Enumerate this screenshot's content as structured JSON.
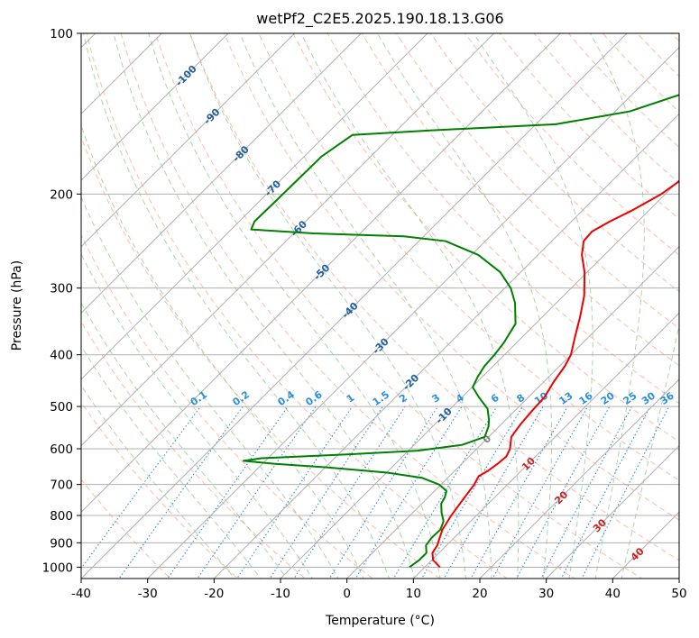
{
  "chart_data": {
    "type": "line",
    "title": "wetPf2_C2E5.2025.190.18.13.G06",
    "xlabel": "Temperature (°C)",
    "ylabel": "Pressure (hPa)",
    "xlim": [
      -40,
      50
    ],
    "ylim": [
      1050,
      100
    ],
    "y_scale": "log",
    "skew": "skew-T log-p",
    "grid": true,
    "x_ticks": [
      -40,
      -30,
      -20,
      -10,
      0,
      10,
      20,
      30,
      40,
      50
    ],
    "y_ticks": [
      1000,
      900,
      800,
      700,
      600,
      500,
      400,
      300,
      200,
      100
    ],
    "isotherm_labels": [
      {
        "value": "-100",
        "t": -100,
        "p": 120
      },
      {
        "value": "-90",
        "t": -90,
        "p": 143
      },
      {
        "value": "-80",
        "t": -80,
        "p": 168
      },
      {
        "value": "-70",
        "t": -70,
        "p": 195
      },
      {
        "value": "-60",
        "t": -60,
        "p": 232
      },
      {
        "value": "-50",
        "t": -50,
        "p": 280
      },
      {
        "value": "-40",
        "t": -40,
        "p": 330
      },
      {
        "value": "-30",
        "t": -30,
        "p": 385
      },
      {
        "value": "-20",
        "t": -20,
        "p": 450
      },
      {
        "value": "-10",
        "t": -10,
        "p": 520
      },
      {
        "value": "0",
        "t": 0,
        "p": 575
      },
      {
        "value": "10",
        "t": 10,
        "p": 640
      },
      {
        "value": "20",
        "t": 20,
        "p": 740
      },
      {
        "value": "30",
        "t": 30,
        "p": 835
      },
      {
        "value": "40",
        "t": 40,
        "p": 945
      }
    ],
    "mixing_ratio_labels": [
      "0.1",
      "0.2",
      "0.4",
      "0.6",
      "1",
      "1.5",
      "2",
      "3",
      "4",
      "6",
      "8",
      "10",
      "13",
      "16",
      "20",
      "25",
      "30",
      "36"
    ],
    "mixing_ratio_values": [
      0.1,
      0.2,
      0.4,
      0.6,
      1,
      1.5,
      2,
      3,
      4,
      6,
      8,
      10,
      13,
      16,
      20,
      25,
      30,
      36
    ],
    "colors": {
      "temperature": "#ee0000",
      "dewpoint": "#008000",
      "isotherm_label": "#1f5fa0",
      "isotherm_label_warm": "#cc2222",
      "isotherm_label_zero": "#808080",
      "mixing_ratio": "#2b8fe0",
      "dry_adiabat": "#ffa080",
      "moist_adiabat": "#80c080",
      "grid": "#b0b0b0"
    },
    "series": [
      {
        "name": "",
        "role": "temperature",
        "points": [
          {
            "p": 1000,
            "t": 12.3
          },
          {
            "p": 970,
            "t": 10.2
          },
          {
            "p": 940,
            "t": 9.0
          },
          {
            "p": 910,
            "t": 8.6
          },
          {
            "p": 880,
            "t": 7.8
          },
          {
            "p": 850,
            "t": 7.0
          },
          {
            "p": 800,
            "t": 6.2
          },
          {
            "p": 750,
            "t": 5.6
          },
          {
            "p": 700,
            "t": 5.0
          },
          {
            "p": 675,
            "t": 4.4
          },
          {
            "p": 660,
            "t": 5.0
          },
          {
            "p": 640,
            "t": 5.4
          },
          {
            "p": 620,
            "t": 5.6
          },
          {
            "p": 600,
            "t": 5.0
          },
          {
            "p": 570,
            "t": 3.4
          },
          {
            "p": 540,
            "t": 2.9
          },
          {
            "p": 510,
            "t": 2.6
          },
          {
            "p": 480,
            "t": 2.4
          },
          {
            "p": 450,
            "t": 1.5
          },
          {
            "p": 420,
            "t": 0.8
          },
          {
            "p": 400,
            "t": 0.0
          },
          {
            "p": 370,
            "t": -2.1
          },
          {
            "p": 340,
            "t": -4.3
          },
          {
            "p": 310,
            "t": -6.9
          },
          {
            "p": 280,
            "t": -10.4
          },
          {
            "p": 260,
            "t": -13.4
          },
          {
            "p": 245,
            "t": -15.2
          },
          {
            "p": 235,
            "t": -15.4
          },
          {
            "p": 225,
            "t": -14.2
          },
          {
            "p": 215,
            "t": -12.6
          },
          {
            "p": 200,
            "t": -10.6
          },
          {
            "p": 190,
            "t": -9.9
          },
          {
            "p": 175,
            "t": -9.9
          },
          {
            "p": 160,
            "t": -11.6
          },
          {
            "p": 145,
            "t": -14.4
          },
          {
            "p": 130,
            "t": -18.9
          },
          {
            "p": 120,
            "t": -22.3
          },
          {
            "p": 110,
            "t": -23.9
          },
          {
            "p": 100,
            "t": -25.3
          }
        ]
      },
      {
        "name": "",
        "role": "dewpoint",
        "points": [
          {
            "p": 1000,
            "t": 7.7
          },
          {
            "p": 970,
            "t": 8.1
          },
          {
            "p": 940,
            "t": 8.1
          },
          {
            "p": 910,
            "t": 6.9
          },
          {
            "p": 880,
            "t": 6.6
          },
          {
            "p": 850,
            "t": 6.7
          },
          {
            "p": 820,
            "t": 5.9
          },
          {
            "p": 790,
            "t": 4.3
          },
          {
            "p": 760,
            "t": 2.9
          },
          {
            "p": 740,
            "t": 2.5
          },
          {
            "p": 720,
            "t": 1.8
          },
          {
            "p": 700,
            "t": -0.3
          },
          {
            "p": 680,
            "t": -3.9
          },
          {
            "p": 665,
            "t": -9.9
          },
          {
            "p": 650,
            "t": -19.8
          },
          {
            "p": 640,
            "t": -28.3
          },
          {
            "p": 632,
            "t": -33.3
          },
          {
            "p": 625,
            "t": -31.0
          },
          {
            "p": 615,
            "t": -18.9
          },
          {
            "p": 605,
            "t": -8.6
          },
          {
            "p": 590,
            "t": -2.8
          },
          {
            "p": 570,
            "t": -0.6
          },
          {
            "p": 545,
            "t": -1.6
          },
          {
            "p": 530,
            "t": -2.5
          },
          {
            "p": 505,
            "t": -4.4
          },
          {
            "p": 480,
            "t": -7.5
          },
          {
            "p": 460,
            "t": -9.9
          },
          {
            "p": 440,
            "t": -10.7
          },
          {
            "p": 420,
            "t": -11.3
          },
          {
            "p": 400,
            "t": -11.5
          },
          {
            "p": 380,
            "t": -11.9
          },
          {
            "p": 350,
            "t": -13.0
          },
          {
            "p": 320,
            "t": -16.2
          },
          {
            "p": 300,
            "t": -19.1
          },
          {
            "p": 280,
            "t": -23.1
          },
          {
            "p": 260,
            "t": -29.0
          },
          {
            "p": 245,
            "t": -36.0
          },
          {
            "p": 240,
            "t": -43.0
          },
          {
            "p": 237,
            "t": -57.0
          },
          {
            "p": 233,
            "t": -67.0
          },
          {
            "p": 225,
            "t": -67.7
          },
          {
            "p": 210,
            "t": -67.6
          },
          {
            "p": 190,
            "t": -67.5
          },
          {
            "p": 170,
            "t": -67.4
          },
          {
            "p": 155,
            "t": -66.0
          },
          {
            "p": 152,
            "t": -55.0
          },
          {
            "p": 148,
            "t": -37.0
          },
          {
            "p": 140,
            "t": -27.8
          },
          {
            "p": 125,
            "t": -19.9
          },
          {
            "p": 110,
            "t": -17.0
          },
          {
            "p": 100,
            "t": -16.7
          }
        ]
      }
    ]
  }
}
